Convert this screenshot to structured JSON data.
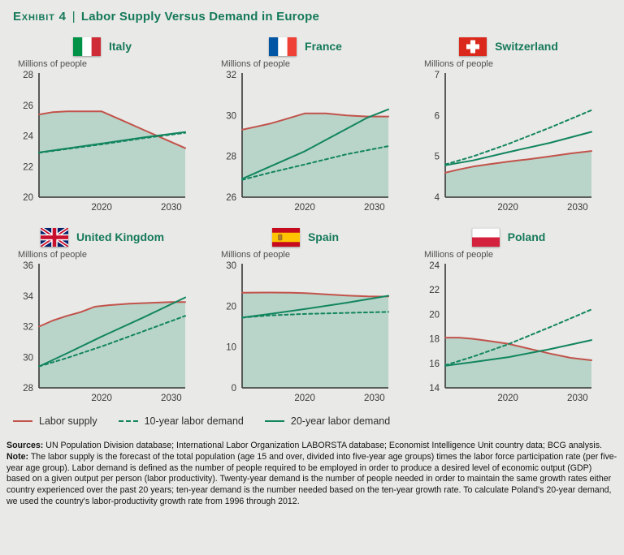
{
  "title": {
    "exhibit_label": "Exhibit 4",
    "separator": "|",
    "text": "Labor Supply Versus Demand in Europe"
  },
  "colors": {
    "background": "#e9e9e7",
    "title_green": "#15795a",
    "supply_red": "#c1534b",
    "demand_green": "#12855f",
    "area_fill": "#b9d5c9",
    "axis": "#4a4a4a",
    "tick_text": "#3a3a3a"
  },
  "legend": {
    "items": [
      {
        "label": "Labor supply",
        "style": "solid",
        "color": "#c1534b"
      },
      {
        "label": "10-year labor demand",
        "style": "dashed",
        "color": "#12855f"
      },
      {
        "label": "20-year labor demand",
        "style": "solid",
        "color": "#12855f"
      }
    ]
  },
  "chart_data": [
    {
      "type": "area",
      "country": "Italy",
      "flag_icon": "italy-flag",
      "ylabel": "Millions of people",
      "xlim": [
        2011,
        2032
      ],
      "ylim": [
        20,
        28
      ],
      "yticks": [
        20,
        22,
        24,
        26,
        28
      ],
      "xticks": [
        2020,
        2030
      ],
      "grid": false,
      "series": [
        {
          "name": "Labor supply",
          "color": "#c1534b",
          "dash": false,
          "area": true,
          "x": [
            2011,
            2013,
            2015,
            2017,
            2020,
            2023,
            2026,
            2029,
            2032
          ],
          "y": [
            25.4,
            25.55,
            25.6,
            25.6,
            25.6,
            25.0,
            24.4,
            23.8,
            23.2
          ]
        },
        {
          "name": "10-year labor demand",
          "color": "#12855f",
          "dash": true,
          "x": [
            2011,
            2020,
            2026,
            2032
          ],
          "y": [
            22.9,
            23.45,
            23.85,
            24.2
          ]
        },
        {
          "name": "20-year labor demand",
          "color": "#12855f",
          "dash": false,
          "x": [
            2011,
            2020,
            2026,
            2032
          ],
          "y": [
            22.92,
            23.5,
            23.9,
            24.25
          ]
        }
      ]
    },
    {
      "type": "area",
      "country": "France",
      "flag_icon": "france-flag",
      "ylabel": "Millions of people",
      "xlim": [
        2011,
        2032
      ],
      "ylim": [
        26,
        32
      ],
      "yticks": [
        26,
        28,
        30,
        32
      ],
      "xticks": [
        2020,
        2030
      ],
      "grid": false,
      "series": [
        {
          "name": "Labor supply",
          "color": "#c1534b",
          "dash": false,
          "area": true,
          "x": [
            2011,
            2013,
            2015,
            2017,
            2020,
            2023,
            2026,
            2029,
            2032
          ],
          "y": [
            29.3,
            29.45,
            29.6,
            29.8,
            30.1,
            30.1,
            30.0,
            29.95,
            29.95
          ]
        },
        {
          "name": "10-year labor demand",
          "color": "#12855f",
          "dash": true,
          "x": [
            2011,
            2015,
            2020,
            2026,
            2032
          ],
          "y": [
            26.85,
            27.2,
            27.6,
            28.1,
            28.5
          ]
        },
        {
          "name": "20-year labor demand",
          "color": "#12855f",
          "dash": false,
          "x": [
            2011,
            2015,
            2020,
            2023,
            2026,
            2029,
            2032
          ],
          "y": [
            26.9,
            27.5,
            28.25,
            28.8,
            29.35,
            29.9,
            30.3
          ]
        }
      ]
    },
    {
      "type": "area",
      "country": "Switzerland",
      "flag_icon": "switzerland-flag",
      "ylabel": "Millions of people",
      "xlim": [
        2011,
        2032
      ],
      "ylim": [
        4,
        7
      ],
      "yticks": [
        4,
        5,
        6,
        7
      ],
      "xticks": [
        2020,
        2030
      ],
      "grid": false,
      "series": [
        {
          "name": "Labor supply",
          "color": "#c1534b",
          "dash": false,
          "area": true,
          "x": [
            2011,
            2013,
            2015,
            2017,
            2020,
            2023,
            2026,
            2029,
            2032
          ],
          "y": [
            4.6,
            4.68,
            4.75,
            4.8,
            4.87,
            4.93,
            5.0,
            5.07,
            5.13
          ]
        },
        {
          "name": "10-year labor demand",
          "color": "#12855f",
          "dash": true,
          "x": [
            2011,
            2015,
            2020,
            2026,
            2032
          ],
          "y": [
            4.8,
            5.0,
            5.3,
            5.7,
            6.13
          ]
        },
        {
          "name": "20-year labor demand",
          "color": "#12855f",
          "dash": false,
          "x": [
            2011,
            2015,
            2020,
            2026,
            2032
          ],
          "y": [
            4.78,
            4.9,
            5.1,
            5.33,
            5.6
          ]
        }
      ]
    },
    {
      "type": "area",
      "country": "United Kingdom",
      "flag_icon": "united-kingdom-flag",
      "ylabel": "Millions of people",
      "xlim": [
        2011,
        2032
      ],
      "ylim": [
        28,
        36
      ],
      "yticks": [
        28,
        30,
        32,
        34,
        36
      ],
      "xticks": [
        2020,
        2030
      ],
      "grid": false,
      "series": [
        {
          "name": "Labor supply",
          "color": "#c1534b",
          "dash": false,
          "area": true,
          "x": [
            2011,
            2013,
            2015,
            2017,
            2019,
            2021,
            2024,
            2027,
            2030,
            2032
          ],
          "y": [
            32.0,
            32.4,
            32.7,
            32.95,
            33.3,
            33.4,
            33.5,
            33.55,
            33.6,
            33.6
          ]
        },
        {
          "name": "10-year labor demand",
          "color": "#12855f",
          "dash": true,
          "x": [
            2011,
            2015,
            2020,
            2026,
            2032
          ],
          "y": [
            29.4,
            29.95,
            30.7,
            31.7,
            32.7
          ]
        },
        {
          "name": "20-year labor demand",
          "color": "#12855f",
          "dash": false,
          "x": [
            2011,
            2015,
            2020,
            2026,
            2032
          ],
          "y": [
            29.4,
            30.25,
            31.35,
            32.6,
            33.9
          ]
        }
      ]
    },
    {
      "type": "area",
      "country": "Spain",
      "flag_icon": "spain-flag",
      "ylabel": "Millions of people",
      "xlim": [
        2011,
        2032
      ],
      "ylim": [
        0,
        30
      ],
      "yticks": [
        0,
        10,
        20,
        30
      ],
      "xticks": [
        2020,
        2030
      ],
      "grid": false,
      "series": [
        {
          "name": "Labor supply",
          "color": "#c1534b",
          "dash": false,
          "area": true,
          "x": [
            2011,
            2015,
            2018,
            2020,
            2023,
            2026,
            2029,
            2031,
            2032
          ],
          "y": [
            23.3,
            23.35,
            23.3,
            23.2,
            22.9,
            22.6,
            22.4,
            22.35,
            22.4
          ]
        },
        {
          "name": "10-year labor demand",
          "color": "#12855f",
          "dash": true,
          "x": [
            2011,
            2015,
            2020,
            2026,
            2032
          ],
          "y": [
            17.2,
            17.75,
            18.1,
            18.35,
            18.6
          ]
        },
        {
          "name": "20-year labor demand",
          "color": "#12855f",
          "dash": false,
          "x": [
            2011,
            2015,
            2020,
            2026,
            2032
          ],
          "y": [
            17.2,
            18.1,
            19.3,
            20.85,
            22.55
          ]
        }
      ]
    },
    {
      "type": "area",
      "country": "Poland",
      "flag_icon": "poland-flag",
      "ylabel": "Millions of people",
      "xlim": [
        2011,
        2032
      ],
      "ylim": [
        14,
        24
      ],
      "yticks": [
        14,
        16,
        18,
        20,
        22,
        24
      ],
      "xticks": [
        2020,
        2030
      ],
      "grid": false,
      "series": [
        {
          "name": "Labor supply",
          "color": "#c1534b",
          "dash": false,
          "area": true,
          "x": [
            2011,
            2013,
            2015,
            2017,
            2020,
            2023,
            2026,
            2029,
            2032
          ],
          "y": [
            18.1,
            18.1,
            18.0,
            17.85,
            17.6,
            17.2,
            16.8,
            16.45,
            16.25
          ]
        },
        {
          "name": "10-year labor demand",
          "color": "#12855f",
          "dash": true,
          "x": [
            2011,
            2015,
            2020,
            2026,
            2032
          ],
          "y": [
            15.85,
            16.55,
            17.55,
            18.95,
            20.4
          ]
        },
        {
          "name": "20-year labor demand",
          "color": "#12855f",
          "dash": false,
          "x": [
            2011,
            2015,
            2020,
            2026,
            2032
          ],
          "y": [
            15.8,
            16.1,
            16.5,
            17.15,
            17.9
          ]
        }
      ]
    }
  ],
  "footer": {
    "sources_label": "Sources:",
    "sources_text": " UN Population Division database; International Labor Organization LABORSTA database; Economist Intelligence Unit country data; BCG analysis.",
    "note_label": "Note:",
    "note_text": " The labor supply is the forecast of the total population (age 15 and over, divided into five-year age groups) times the labor force participation rate (per five-year age group). Labor demand is defined as the number of people required to be employed in order to produce a desired level of economic output (GDP) based on a given output per person (labor productivity). Twenty-year demand is the number of people needed in order to maintain the same growth rates either country experienced over the past 20 years; ten-year demand is the number needed based on the ten-year growth rate. To calculate Poland's 20-year demand, we used the country's labor-productivity growth rate from 1996 through 2012."
  }
}
